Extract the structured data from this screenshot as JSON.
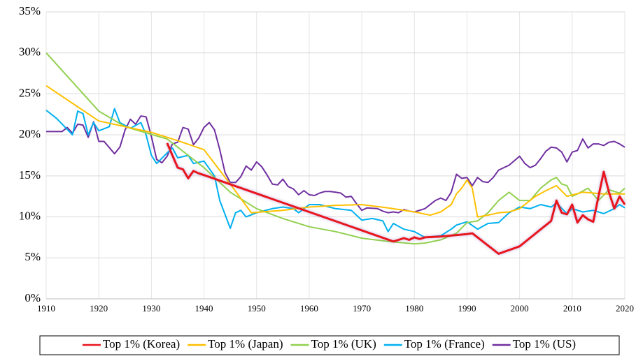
{
  "chart_data": {
    "type": "line",
    "xlim": [
      1910,
      2020
    ],
    "xticks": [
      1910,
      1920,
      1930,
      1940,
      1950,
      1960,
      1970,
      1980,
      1990,
      2000,
      2010,
      2020
    ],
    "ylim": [
      0,
      35
    ],
    "yticks": [
      {
        "value": 0,
        "label": "0%"
      },
      {
        "value": 5,
        "label": "5%"
      },
      {
        "value": 10,
        "label": "10%"
      },
      {
        "value": 15,
        "label": "15%"
      },
      {
        "value": 20,
        "label": "20%"
      },
      {
        "value": 25,
        "label": "25%"
      },
      {
        "value": 30,
        "label": "30%"
      },
      {
        "value": 35,
        "label": "35%"
      }
    ],
    "grid": true,
    "legend": "bottom",
    "series": [
      {
        "name": "Top 1% (Korea)",
        "color": "#e8141c",
        "x": [
          1933,
          1934,
          1935,
          1936,
          1937,
          1938,
          1939,
          1940,
          1976,
          1977,
          1978,
          1979,
          1980,
          1981,
          1982,
          1985,
          1990,
          1991,
          1996,
          2000,
          2006,
          2007,
          2008,
          2009,
          2010,
          2011,
          2012,
          2013,
          2014,
          2015,
          2016,
          2017,
          2018,
          2019,
          2020
        ],
        "values": [
          19,
          17.5,
          16,
          15.8,
          14.7,
          15.6,
          15.3,
          15.1,
          7.0,
          7.2,
          7.4,
          7.2,
          7.5,
          7.3,
          7.5,
          7.6,
          7.9,
          8.0,
          5.5,
          6.4,
          9.5,
          12.0,
          10.5,
          10.3,
          11.5,
          9.3,
          10.2,
          9.7,
          9.4,
          12.5,
          15.5,
          13.0,
          11.0,
          12.5,
          11.5
        ]
      },
      {
        "name": "Top 1% (Japan)",
        "color": "#ffc000",
        "x": [
          1910,
          1920,
          1930,
          1935,
          1940,
          1945,
          1949,
          1955,
          1960,
          1965,
          1970,
          1975,
          1980,
          1983,
          1985,
          1987,
          1988,
          1989,
          1990,
          1991,
          1992,
          1994,
          1996,
          1998,
          2000,
          2003,
          2005,
          2007,
          2009,
          2012,
          2016,
          2020
        ],
        "values": [
          26,
          21.7,
          20.3,
          19.3,
          18.2,
          14,
          10.5,
          10.8,
          11.2,
          11.4,
          11.5,
          11.1,
          10.6,
          10.2,
          10.6,
          11.5,
          12.8,
          13.5,
          14.5,
          13.5,
          10.0,
          10.2,
          10.5,
          10.6,
          11.0,
          12.5,
          13.2,
          13.8,
          12.5,
          13.0,
          12.8,
          12.8
        ]
      },
      {
        "name": "Top 1% (UK)",
        "color": "#92d050",
        "x": [
          1910,
          1920,
          1925,
          1933,
          1937,
          1940,
          1945,
          1950,
          1955,
          1960,
          1965,
          1970,
          1975,
          1980,
          1982,
          1985,
          1988,
          1990,
          1992,
          1994,
          1996,
          1998,
          1999,
          2000,
          2002,
          2004,
          2006,
          2007,
          2008,
          2009,
          2010,
          2011,
          2013,
          2015,
          2017,
          2019,
          2020
        ],
        "values": [
          30,
          22.9,
          21,
          19.5,
          17.5,
          16,
          13,
          11,
          9.8,
          8.8,
          8.2,
          7.4,
          7.0,
          6.7,
          6.8,
          7.2,
          8.0,
          9.3,
          9.5,
          10.5,
          12.0,
          13.0,
          12.5,
          12.0,
          12.0,
          13.5,
          14.5,
          14.8,
          14.0,
          13.8,
          12.5,
          12.8,
          13.5,
          12.0,
          13.3,
          12.9,
          13.5
        ]
      },
      {
        "name": "Top 1% (France)",
        "color": "#00b0f0",
        "x": [
          1910,
          1912,
          1915,
          1916,
          1917,
          1918,
          1919,
          1920,
          1922,
          1923,
          1924,
          1926,
          1928,
          1929,
          1930,
          1931,
          1933,
          1934,
          1935,
          1937,
          1938,
          1940,
          1942,
          1943,
          1945,
          1946,
          1947,
          1948,
          1950,
          1953,
          1955,
          1957,
          1958,
          1960,
          1962,
          1965,
          1968,
          1970,
          1972,
          1974,
          1975,
          1976,
          1978,
          1980,
          1982,
          1985,
          1987,
          1988,
          1990,
          1992,
          1994,
          1996,
          1998,
          2000,
          2002,
          2004,
          2006,
          2007,
          2009,
          2010,
          2012,
          2014,
          2016,
          2018,
          2019,
          2020
        ],
        "values": [
          23,
          22,
          20,
          22.9,
          22.6,
          20,
          21.5,
          20.5,
          21,
          23.2,
          21.5,
          20.8,
          21.5,
          20,
          17.5,
          16.5,
          17.8,
          18.4,
          17.2,
          17.5,
          16.5,
          16.8,
          15,
          12,
          8.6,
          10.5,
          10.8,
          10.0,
          10.5,
          11,
          11.2,
          11,
          10.5,
          11.5,
          11.5,
          11,
          10.8,
          9.6,
          9.8,
          9.5,
          8.2,
          9.2,
          8.5,
          8.2,
          7.5,
          7.7,
          8.5,
          9.0,
          9.4,
          8.5,
          9.2,
          9.3,
          10.5,
          11.2,
          11.0,
          11.5,
          11.2,
          11.7,
          10.4,
          11.0,
          10.6,
          10.8,
          10.4,
          11.0,
          11.5,
          11.1
        ]
      },
      {
        "name": "Top 1% (US)",
        "color": "#7030a0",
        "x": [
          1910,
          1913,
          1914,
          1915,
          1916,
          1917,
          1918,
          1919,
          1920,
          1921,
          1923,
          1924,
          1925,
          1926,
          1927,
          1928,
          1929,
          1930,
          1931,
          1932,
          1933,
          1934,
          1935,
          1936,
          1937,
          1938,
          1939,
          1940,
          1941,
          1942,
          1943,
          1944,
          1945,
          1946,
          1947,
          1948,
          1949,
          1950,
          1951,
          1952,
          1953,
          1954,
          1955,
          1956,
          1957,
          1958,
          1959,
          1960,
          1961,
          1962,
          1963,
          1964,
          1965,
          1966,
          1967,
          1968,
          1969,
          1970,
          1971,
          1973,
          1974,
          1975,
          1976,
          1977,
          1978,
          1979,
          1980,
          1982,
          1984,
          1985,
          1986,
          1987,
          1988,
          1989,
          1990,
          1991,
          1992,
          1993,
          1994,
          1995,
          1996,
          1998,
          2000,
          2001,
          2002,
          2003,
          2004,
          2005,
          2006,
          2007,
          2008,
          2009,
          2010,
          2011,
          2012,
          2013,
          2014,
          2015,
          2016,
          2017,
          2018,
          2019,
          2020
        ],
        "values": [
          20.4,
          20.4,
          20.9,
          20.2,
          21.3,
          21.2,
          19.7,
          21.6,
          19.2,
          19.2,
          17.7,
          18.5,
          20.6,
          21.9,
          21.3,
          22.3,
          22.2,
          19.8,
          17.0,
          16.6,
          17.4,
          18.9,
          19.1,
          20.9,
          20.7,
          18.8,
          19.6,
          20.9,
          21.5,
          20.6,
          18.2,
          15.4,
          14.2,
          14.2,
          14.9,
          16.2,
          15.7,
          16.7,
          16.1,
          15.1,
          14.0,
          13.9,
          14.6,
          13.7,
          13.4,
          12.7,
          13.2,
          12.7,
          12.6,
          12.9,
          13.1,
          13.1,
          13.0,
          12.9,
          12.4,
          12.5,
          11.6,
          10.8,
          11.1,
          11.0,
          10.7,
          10.5,
          10.6,
          10.5,
          10.9,
          10.7,
          10.6,
          11.0,
          12.0,
          12.3,
          12.0,
          13.0,
          15.2,
          14.7,
          14.8,
          13.8,
          14.8,
          14.3,
          14.2,
          14.8,
          15.7,
          16.3,
          17.4,
          16.5,
          16.0,
          16.3,
          17.1,
          18.0,
          18.5,
          18.4,
          17.9,
          16.7,
          17.9,
          18.1,
          19.5,
          18.4,
          18.9,
          18.9,
          18.7,
          19.1,
          19.2,
          18.9,
          18.5
        ]
      }
    ]
  }
}
